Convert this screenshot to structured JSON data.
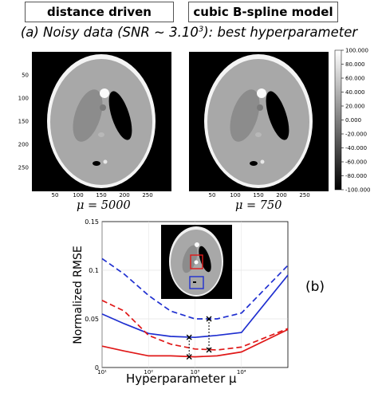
{
  "headers": {
    "left": "distance driven",
    "right": "cubic B-spline model"
  },
  "subtitle": {
    "prefix": "(a) Noisy data (SNR ~ 3.10",
    "exp": "3",
    "suffix": "): best hyperparameter"
  },
  "panel_left": {
    "caption": "μ = 5000",
    "xticks": [
      "50",
      "100",
      "150",
      "200",
      "250"
    ],
    "yticks": [
      "50",
      "100",
      "150",
      "200",
      "250"
    ]
  },
  "panel_right": {
    "caption": "μ = 750",
    "xticks": [
      "50",
      "100",
      "150",
      "200",
      "250"
    ]
  },
  "colorbar": {
    "ticks": [
      "100.000",
      "80.000",
      "60.000",
      "40.000",
      "20.000",
      "0.000",
      "-20.000",
      "-40.000",
      "-60.000",
      "-80.000",
      "-100.000"
    ]
  },
  "panel_b_label": "(b)",
  "chart_data": {
    "type": "line",
    "xlabel": "Hyperparameter μ",
    "ylabel": "Normalized RMSE",
    "xscale": "log",
    "xlim": [
      10,
      100000
    ],
    "ylim": [
      0,
      0.15
    ],
    "xtick_labels": [
      "10¹",
      "10²",
      "10³",
      "10⁴"
    ],
    "ytick_labels": [
      "0",
      "0.05",
      "0.1",
      "0.15"
    ],
    "colors": {
      "blue": "#1f2fd0",
      "red": "#e01818"
    },
    "series": [
      {
        "name": "",
        "color": "blue",
        "dash": true,
        "x": [
          10,
          30,
          100,
          300,
          1000,
          3000,
          10000,
          100000
        ],
        "y": [
          0.112,
          0.096,
          0.074,
          0.058,
          0.05,
          0.05,
          0.056,
          0.105
        ]
      },
      {
        "name": "",
        "color": "blue",
        "dash": false,
        "x": [
          10,
          30,
          100,
          300,
          1000,
          3000,
          10000,
          100000
        ],
        "y": [
          0.055,
          0.045,
          0.035,
          0.032,
          0.031,
          0.033,
          0.036,
          0.095
        ]
      },
      {
        "name": "",
        "color": "red",
        "dash": true,
        "x": [
          10,
          30,
          100,
          300,
          1000,
          3000,
          10000,
          100000
        ],
        "y": [
          0.069,
          0.058,
          0.033,
          0.024,
          0.019,
          0.018,
          0.021,
          0.04
        ]
      },
      {
        "name": "",
        "color": "red",
        "dash": false,
        "x": [
          10,
          30,
          100,
          300,
          1000,
          3000,
          10000,
          100000
        ],
        "y": [
          0.022,
          0.017,
          0.012,
          0.012,
          0.011,
          0.012,
          0.016,
          0.039
        ]
      }
    ],
    "markers": [
      {
        "x": 750,
        "y_top": 0.031,
        "y_bottom": 0.011
      },
      {
        "x": 2000,
        "y_top": 0.05,
        "y_bottom": 0.018
      }
    ]
  }
}
